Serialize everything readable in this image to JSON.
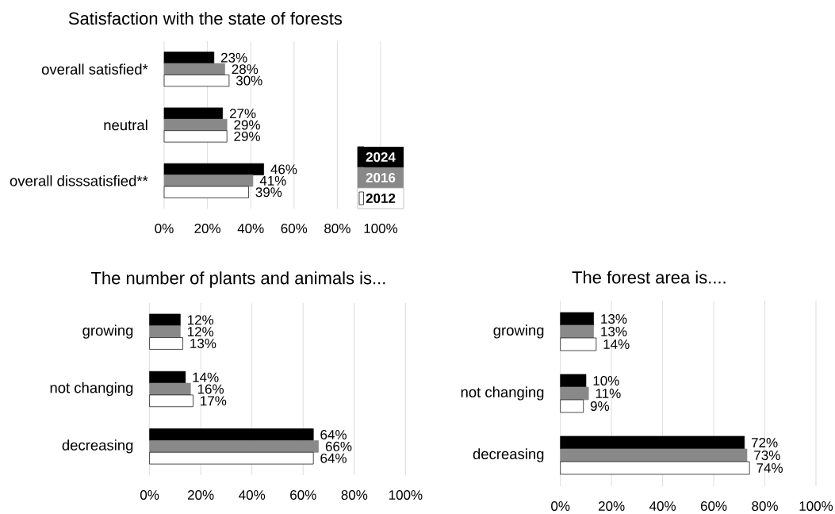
{
  "chart_data": [
    {
      "type": "bar",
      "orientation": "horizontal",
      "title": "Satisfaction with the state of forests",
      "categories": [
        "overall satisfied*",
        "neutral",
        "overall disssatisfied**"
      ],
      "series": [
        {
          "name": "2024",
          "color": "#000000",
          "values": [
            23,
            27,
            46
          ],
          "value_labels": [
            "23%",
            "27%",
            "46%"
          ]
        },
        {
          "name": "2016",
          "color": "#898989",
          "values": [
            28,
            29,
            41
          ],
          "value_labels": [
            "28%",
            "29%",
            "41%"
          ]
        },
        {
          "name": "2012",
          "color": "#ffffff",
          "values": [
            30,
            29,
            39
          ],
          "value_labels": [
            "30%",
            "29%",
            "39%"
          ]
        }
      ],
      "xlim": [
        0,
        100
      ],
      "xticks": [
        {
          "value": 0,
          "label": "0%"
        },
        {
          "value": 20,
          "label": "20%"
        },
        {
          "value": 40,
          "label": "40%"
        },
        {
          "value": 60,
          "label": "60%"
        },
        {
          "value": 80,
          "label": "80%"
        },
        {
          "value": 100,
          "label": "100%"
        }
      ],
      "grid": "x",
      "legend": "bottom right"
    },
    {
      "type": "bar",
      "orientation": "horizontal",
      "title": "The number of plants and animals is...",
      "categories": [
        "growing",
        "not changing",
        "decreasing"
      ],
      "series": [
        {
          "color": "#000000",
          "values": [
            12,
            14,
            64
          ],
          "value_labels": [
            "12%",
            "14%",
            "64%"
          ]
        },
        {
          "color": "#898989",
          "values": [
            12,
            16,
            66
          ],
          "value_labels": [
            "12%",
            "16%",
            "66%"
          ]
        },
        {
          "color": "#ffffff",
          "values": [
            13,
            17,
            64
          ],
          "value_labels": [
            "13%",
            "17%",
            "64%"
          ]
        }
      ],
      "xlim": [
        0,
        100
      ],
      "xticks": [
        {
          "value": 0,
          "label": "0%"
        },
        {
          "value": 20,
          "label": "20%"
        },
        {
          "value": 40,
          "label": "40%"
        },
        {
          "value": 60,
          "label": "60%"
        },
        {
          "value": 80,
          "label": "80%"
        },
        {
          "value": 100,
          "label": "100%"
        }
      ],
      "grid": "x"
    },
    {
      "type": "bar",
      "orientation": "horizontal",
      "title": "The forest area is....",
      "categories": [
        "growing",
        "not changing",
        "decreasing"
      ],
      "series": [
        {
          "color": "#000000",
          "values": [
            13,
            10,
            72
          ],
          "value_labels": [
            "13%",
            "10%",
            "72%"
          ]
        },
        {
          "color": "#898989",
          "values": [
            13,
            11,
            73
          ],
          "value_labels": [
            "13%",
            "11%",
            "73%"
          ]
        },
        {
          "color": "#ffffff",
          "values": [
            14,
            9,
            74
          ],
          "value_labels": [
            "14%",
            "9%",
            "74%"
          ]
        }
      ],
      "xlim": [
        0,
        100
      ],
      "xticks": [
        {
          "value": 0,
          "label": "0%"
        },
        {
          "value": 20,
          "label": "20%"
        },
        {
          "value": 40,
          "label": "40%"
        },
        {
          "value": 60,
          "label": "60%"
        },
        {
          "value": 80,
          "label": "80%"
        },
        {
          "value": 100,
          "label": "100%"
        }
      ],
      "grid": "x"
    }
  ]
}
